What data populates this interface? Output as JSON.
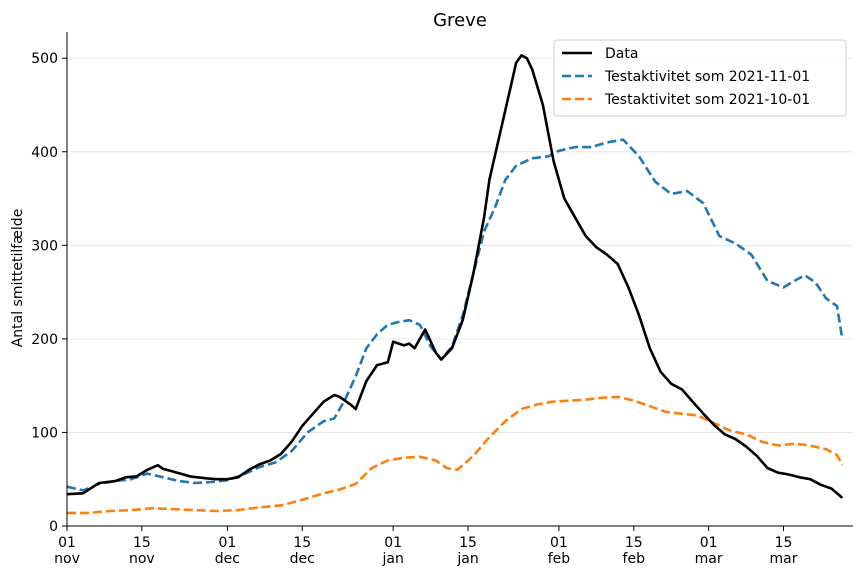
{
  "chart_data": {
    "type": "line",
    "title": "Greve",
    "xlabel": "",
    "ylabel": "Antal smittetilfælde",
    "ylim": [
      0,
      528
    ],
    "xlim": [
      "2021-11-01",
      "2022-03-28"
    ],
    "yticks": [
      0,
      100,
      200,
      300,
      400,
      500
    ],
    "xticks": [
      {
        "date": "2021-11-01",
        "day": "01",
        "month": "nov"
      },
      {
        "date": "2021-11-15",
        "day": "15",
        "month": "nov"
      },
      {
        "date": "2021-12-01",
        "day": "01",
        "month": "dec"
      },
      {
        "date": "2021-12-15",
        "day": "15",
        "month": "dec"
      },
      {
        "date": "2022-01-01",
        "day": "01",
        "month": "jan"
      },
      {
        "date": "2022-01-15",
        "day": "15",
        "month": "jan"
      },
      {
        "date": "2022-02-01",
        "day": "01",
        "month": "feb"
      },
      {
        "date": "2022-02-15",
        "day": "15",
        "month": "feb"
      },
      {
        "date": "2022-03-01",
        "day": "01",
        "month": "mar"
      },
      {
        "date": "2022-03-15",
        "day": "15",
        "month": "mar"
      }
    ],
    "grid": "horizontal",
    "legend_position": "top-right",
    "series": [
      {
        "name": "Data",
        "color": "#000000",
        "style": "solid",
        "points": [
          [
            "2021-11-01",
            34
          ],
          [
            "2021-11-04",
            35
          ],
          [
            "2021-11-07",
            46
          ],
          [
            "2021-11-10",
            48
          ],
          [
            "2021-11-12",
            52
          ],
          [
            "2021-11-14",
            53
          ],
          [
            "2021-11-16",
            60
          ],
          [
            "2021-11-18",
            65
          ],
          [
            "2021-11-19",
            61
          ],
          [
            "2021-11-21",
            58
          ],
          [
            "2021-11-24",
            53
          ],
          [
            "2021-11-27",
            51
          ],
          [
            "2021-11-29",
            50
          ],
          [
            "2021-12-01",
            50
          ],
          [
            "2021-12-03",
            52
          ],
          [
            "2021-12-05",
            60
          ],
          [
            "2021-12-07",
            66
          ],
          [
            "2021-12-09",
            70
          ],
          [
            "2021-12-11",
            77
          ],
          [
            "2021-12-13",
            90
          ],
          [
            "2021-12-15",
            107
          ],
          [
            "2021-12-17",
            120
          ],
          [
            "2021-12-19",
            133
          ],
          [
            "2021-12-21",
            140
          ],
          [
            "2021-12-22",
            138
          ],
          [
            "2021-12-24",
            130
          ],
          [
            "2021-12-25",
            125
          ],
          [
            "2021-12-27",
            155
          ],
          [
            "2021-12-29",
            172
          ],
          [
            "2021-12-31",
            175
          ],
          [
            "2022-01-01",
            197
          ],
          [
            "2022-01-03",
            193
          ],
          [
            "2022-01-04",
            195
          ],
          [
            "2022-01-05",
            190
          ],
          [
            "2022-01-07",
            210
          ],
          [
            "2022-01-09",
            185
          ],
          [
            "2022-01-10",
            178
          ],
          [
            "2022-01-12",
            190
          ],
          [
            "2022-01-14",
            220
          ],
          [
            "2022-01-16",
            270
          ],
          [
            "2022-01-18",
            330
          ],
          [
            "2022-01-19",
            370
          ],
          [
            "2022-01-21",
            420
          ],
          [
            "2022-01-23",
            470
          ],
          [
            "2022-01-24",
            495
          ],
          [
            "2022-01-25",
            503
          ],
          [
            "2022-01-26",
            500
          ],
          [
            "2022-01-27",
            488
          ],
          [
            "2022-01-29",
            450
          ],
          [
            "2022-01-31",
            390
          ],
          [
            "2022-02-02",
            350
          ],
          [
            "2022-02-04",
            330
          ],
          [
            "2022-02-06",
            310
          ],
          [
            "2022-02-08",
            298
          ],
          [
            "2022-02-10",
            290
          ],
          [
            "2022-02-12",
            280
          ],
          [
            "2022-02-14",
            255
          ],
          [
            "2022-02-16",
            225
          ],
          [
            "2022-02-18",
            190
          ],
          [
            "2022-02-20",
            165
          ],
          [
            "2022-02-22",
            152
          ],
          [
            "2022-02-24",
            146
          ],
          [
            "2022-02-26",
            133
          ],
          [
            "2022-02-28",
            120
          ],
          [
            "2022-03-02",
            108
          ],
          [
            "2022-03-04",
            98
          ],
          [
            "2022-03-06",
            93
          ],
          [
            "2022-03-08",
            85
          ],
          [
            "2022-03-10",
            75
          ],
          [
            "2022-03-12",
            62
          ],
          [
            "2022-03-14",
            57
          ],
          [
            "2022-03-16",
            55
          ],
          [
            "2022-03-18",
            52
          ],
          [
            "2022-03-20",
            50
          ],
          [
            "2022-03-22",
            44
          ],
          [
            "2022-03-24",
            40
          ],
          [
            "2022-03-26",
            30
          ]
        ]
      },
      {
        "name": "Testaktivitet som 2021-11-01",
        "color": "#1f77b4",
        "style": "dashed",
        "points": [
          [
            "2021-11-01",
            42
          ],
          [
            "2021-11-04",
            38
          ],
          [
            "2021-11-07",
            45
          ],
          [
            "2021-11-10",
            48
          ],
          [
            "2021-11-13",
            50
          ],
          [
            "2021-11-16",
            56
          ],
          [
            "2021-11-19",
            52
          ],
          [
            "2021-11-22",
            48
          ],
          [
            "2021-11-25",
            46
          ],
          [
            "2021-11-28",
            47
          ],
          [
            "2021-12-01",
            49
          ],
          [
            "2021-12-04",
            55
          ],
          [
            "2021-12-07",
            63
          ],
          [
            "2021-12-10",
            68
          ],
          [
            "2021-12-13",
            80
          ],
          [
            "2021-12-16",
            100
          ],
          [
            "2021-12-19",
            112
          ],
          [
            "2021-12-21",
            115
          ],
          [
            "2021-12-23",
            135
          ],
          [
            "2021-12-25",
            160
          ],
          [
            "2021-12-27",
            190
          ],
          [
            "2021-12-29",
            205
          ],
          [
            "2021-12-31",
            215
          ],
          [
            "2022-01-02",
            218
          ],
          [
            "2022-01-04",
            220
          ],
          [
            "2022-01-06",
            215
          ],
          [
            "2022-01-08",
            192
          ],
          [
            "2022-01-10",
            178
          ],
          [
            "2022-01-12",
            192
          ],
          [
            "2022-01-14",
            225
          ],
          [
            "2022-01-16",
            270
          ],
          [
            "2022-01-18",
            315
          ],
          [
            "2022-01-20",
            340
          ],
          [
            "2022-01-22",
            370
          ],
          [
            "2022-01-24",
            385
          ],
          [
            "2022-01-27",
            393
          ],
          [
            "2022-01-30",
            395
          ],
          [
            "2022-02-01",
            401
          ],
          [
            "2022-02-04",
            405
          ],
          [
            "2022-02-07",
            405
          ],
          [
            "2022-02-10",
            410
          ],
          [
            "2022-02-13",
            413
          ],
          [
            "2022-02-16",
            395
          ],
          [
            "2022-02-19",
            368
          ],
          [
            "2022-02-22",
            355
          ],
          [
            "2022-02-25",
            358
          ],
          [
            "2022-02-28",
            345
          ],
          [
            "2022-03-03",
            310
          ],
          [
            "2022-03-06",
            302
          ],
          [
            "2022-03-09",
            290
          ],
          [
            "2022-03-12",
            262
          ],
          [
            "2022-03-15",
            255
          ],
          [
            "2022-03-17",
            262
          ],
          [
            "2022-03-19",
            268
          ],
          [
            "2022-03-21",
            260
          ],
          [
            "2022-03-23",
            243
          ],
          [
            "2022-03-25",
            235
          ],
          [
            "2022-03-26",
            200
          ]
        ]
      },
      {
        "name": "Testaktivitet som 2021-10-01",
        "color": "#ff7f0e",
        "style": "dashed",
        "points": [
          [
            "2021-11-01",
            14
          ],
          [
            "2021-11-05",
            14
          ],
          [
            "2021-11-09",
            16
          ],
          [
            "2021-11-13",
            17
          ],
          [
            "2021-11-17",
            19
          ],
          [
            "2021-11-21",
            18
          ],
          [
            "2021-11-25",
            17
          ],
          [
            "2021-11-29",
            16
          ],
          [
            "2021-12-03",
            17
          ],
          [
            "2021-12-07",
            20
          ],
          [
            "2021-12-11",
            22
          ],
          [
            "2021-12-15",
            28
          ],
          [
            "2021-12-19",
            35
          ],
          [
            "2021-12-22",
            39
          ],
          [
            "2021-12-25",
            45
          ],
          [
            "2021-12-28",
            62
          ],
          [
            "2021-12-31",
            70
          ],
          [
            "2022-01-03",
            73
          ],
          [
            "2022-01-06",
            74
          ],
          [
            "2022-01-09",
            70
          ],
          [
            "2022-01-11",
            62
          ],
          [
            "2022-01-13",
            60
          ],
          [
            "2022-01-16",
            75
          ],
          [
            "2022-01-19",
            95
          ],
          [
            "2022-01-22",
            112
          ],
          [
            "2022-01-25",
            125
          ],
          [
            "2022-01-28",
            130
          ],
          [
            "2022-01-31",
            133
          ],
          [
            "2022-02-03",
            134
          ],
          [
            "2022-02-06",
            135
          ],
          [
            "2022-02-09",
            137
          ],
          [
            "2022-02-12",
            138
          ],
          [
            "2022-02-15",
            134
          ],
          [
            "2022-02-18",
            128
          ],
          [
            "2022-02-21",
            122
          ],
          [
            "2022-02-24",
            120
          ],
          [
            "2022-02-27",
            118
          ],
          [
            "2022-03-02",
            110
          ],
          [
            "2022-03-05",
            102
          ],
          [
            "2022-03-08",
            98
          ],
          [
            "2022-03-11",
            90
          ],
          [
            "2022-03-14",
            86
          ],
          [
            "2022-03-17",
            88
          ],
          [
            "2022-03-20",
            86
          ],
          [
            "2022-03-23",
            82
          ],
          [
            "2022-03-25",
            76
          ],
          [
            "2022-03-26",
            65
          ]
        ]
      }
    ]
  }
}
